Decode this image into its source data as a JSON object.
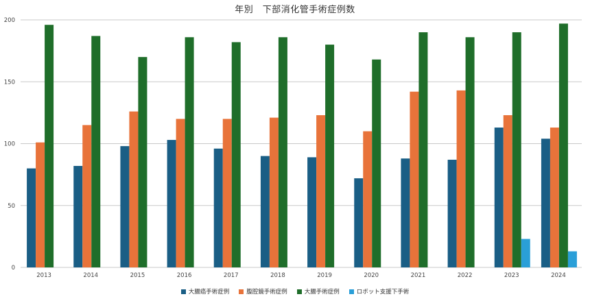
{
  "chart_data": {
    "type": "bar",
    "title": "年別　下部消化管手術症例数",
    "xlabel": "",
    "ylabel": "",
    "ylim": [
      0,
      200
    ],
    "yticks": [
      0,
      50,
      100,
      150,
      200
    ],
    "grid": true,
    "legend": "bottom-center",
    "categories": [
      "2013",
      "2014",
      "2015",
      "2016",
      "2017",
      "2018",
      "2019",
      "2020",
      "2021",
      "2022",
      "2023",
      "2024"
    ],
    "series": [
      {
        "name": "大腸癌手術症例",
        "color": "#1a5e85",
        "values": [
          80,
          82,
          98,
          103,
          96,
          90,
          89,
          72,
          88,
          87,
          113,
          104
        ]
      },
      {
        "name": "腹腔鏡手術症例",
        "color": "#e8733a",
        "values": [
          101,
          115,
          126,
          120,
          120,
          121,
          123,
          110,
          142,
          143,
          123,
          113
        ]
      },
      {
        "name": "大腸手術症例",
        "color": "#1f6e2a",
        "values": [
          196,
          187,
          170,
          186,
          182,
          186,
          180,
          168,
          190,
          186,
          190,
          197
        ]
      },
      {
        "name": "ロボット支援下手術",
        "color": "#2a9fd8",
        "values": [
          0,
          0,
          0,
          0,
          0,
          0,
          0,
          0,
          0,
          0,
          23,
          13
        ]
      }
    ]
  }
}
